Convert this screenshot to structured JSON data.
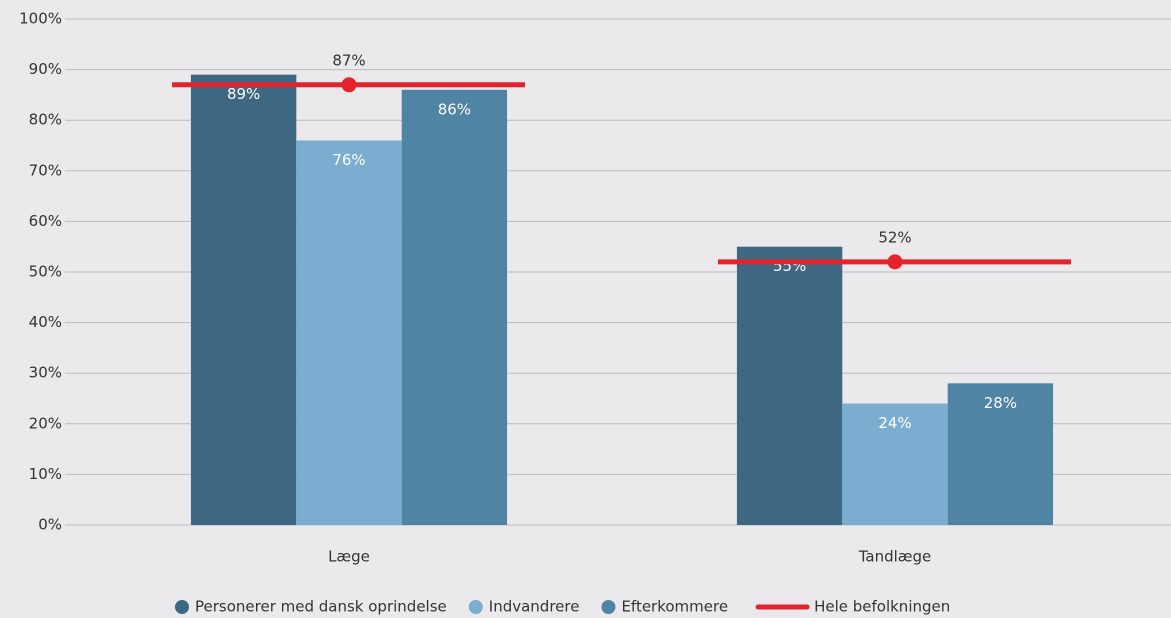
{
  "chart_data": {
    "type": "bar",
    "categories": [
      "Læge",
      "Tandlæge"
    ],
    "series": [
      {
        "name": "Personerer med dansk oprindelse",
        "color": "#3e6882",
        "values": [
          89,
          55
        ],
        "value_labels": [
          "89%",
          "55%"
        ]
      },
      {
        "name": "Indvandrere",
        "color": "#7aadd0",
        "values": [
          76,
          24
        ],
        "value_labels": [
          "76%",
          "24%"
        ]
      },
      {
        "name": "Efterkommere",
        "color": "#4f84a4",
        "values": [
          86,
          28
        ],
        "value_labels": [
          "86%",
          "28%"
        ]
      },
      {
        "name": "Hele befolkningen",
        "type": "line",
        "color": "#e3242b",
        "values": [
          87,
          52
        ],
        "value_labels": [
          "87%",
          "52%"
        ]
      }
    ],
    "ylim": [
      0,
      100
    ],
    "yticks": [
      {
        "value": 0,
        "label": "0%"
      },
      {
        "value": 10,
        "label": "10%"
      },
      {
        "value": 20,
        "label": "20%"
      },
      {
        "value": 30,
        "label": "30%"
      },
      {
        "value": 40,
        "label": "40%"
      },
      {
        "value": 50,
        "label": "50%"
      },
      {
        "value": 60,
        "label": "60%"
      },
      {
        "value": 70,
        "label": "70%"
      },
      {
        "value": 80,
        "label": "80%"
      },
      {
        "value": 90,
        "label": "90%"
      },
      {
        "value": 100,
        "label": "100%"
      }
    ],
    "grid": true,
    "legend": "bottom"
  }
}
